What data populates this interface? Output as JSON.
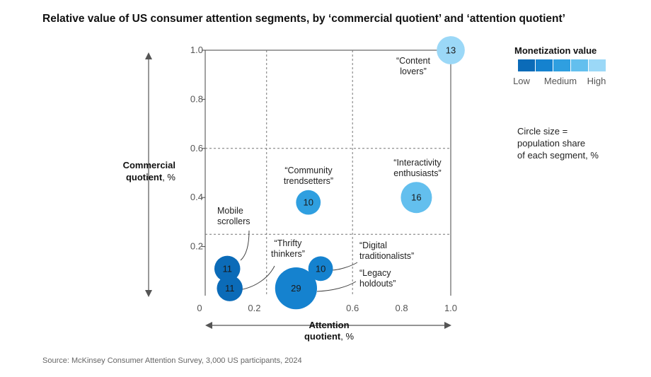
{
  "chart_data": {
    "type": "scatter",
    "title": "Relative value of US consumer attention segments, by ‘commercial quotient’ and ‘attention quotient’",
    "xlabel": [
      "Attention",
      "quotient, %"
    ],
    "ylabel": [
      "Commercial",
      "quotient, %"
    ],
    "xlim": [
      0,
      1.0
    ],
    "ylim": [
      0,
      1.0
    ],
    "x_ticks": [
      {
        "value": 0,
        "label": "0"
      },
      {
        "value": 0.2,
        "label": "0.2"
      },
      {
        "value": 0.6,
        "label": "0.6"
      },
      {
        "value": 0.8,
        "label": "0.8"
      },
      {
        "value": 1.0,
        "label": "1.0"
      }
    ],
    "y_ticks": [
      {
        "value": 0.2,
        "label": "0.2"
      },
      {
        "value": 0.4,
        "label": "0.4"
      },
      {
        "value": 0.6,
        "label": "0.6"
      },
      {
        "value": 0.8,
        "label": "0.8"
      },
      {
        "value": 1.0,
        "label": "1.0"
      }
    ],
    "dashed_gridlines": {
      "x": [
        0.25,
        0.6
      ],
      "y": [
        0.25,
        0.6
      ]
    },
    "points": [
      {
        "label": [
          "“Content",
          "lovers”"
        ],
        "x": 1.0,
        "y": 1.0,
        "size": 13,
        "monetization": 5
      },
      {
        "label": [
          "“Interactivity",
          "enthusiasts”"
        ],
        "x": 0.86,
        "y": 0.4,
        "size": 16,
        "monetization": 4
      },
      {
        "label": [
          "“Community",
          "trendsetters”"
        ],
        "x": 0.42,
        "y": 0.38,
        "size": 10,
        "monetization": 3
      },
      {
        "label": [
          "Mobile",
          "scrollers"
        ],
        "x": 0.09,
        "y": 0.11,
        "size": 11,
        "monetization": 1
      },
      {
        "label": [
          "“Thrifty",
          "thinkers”"
        ],
        "x": 0.1,
        "y": 0.03,
        "size": 11,
        "monetization": 1
      },
      {
        "label": [
          "“Digital",
          "traditionalists”"
        ],
        "x": 0.47,
        "y": 0.11,
        "size": 10,
        "monetization": 2
      },
      {
        "label": [
          "“Legacy",
          "holdouts”"
        ],
        "x": 0.37,
        "y": 0.03,
        "size": 29,
        "monetization": 2
      }
    ],
    "legend": {
      "title": "Monetization value",
      "colors": [
        "#0b6bb8",
        "#1582cf",
        "#2f9fe0",
        "#63bfee",
        "#9bd8f7"
      ],
      "labels": [
        "Low",
        "Medium",
        "High"
      ]
    },
    "size_note": [
      "Circle size =",
      "population share",
      "of each segment, %"
    ],
    "source": "Source: McKinsey Consumer Attention Survey, 3,000 US participants, 2024"
  }
}
